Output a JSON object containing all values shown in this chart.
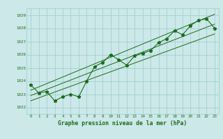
{
  "hours": [
    0,
    1,
    2,
    3,
    4,
    5,
    6,
    7,
    8,
    9,
    10,
    11,
    12,
    13,
    14,
    15,
    16,
    17,
    18,
    19,
    20,
    21,
    22,
    23
  ],
  "pressure": [
    1023.7,
    1023.1,
    1023.2,
    1022.5,
    1022.8,
    1023.0,
    1022.8,
    1024.0,
    1025.1,
    1025.4,
    1026.0,
    1025.6,
    1025.2,
    1025.9,
    1026.1,
    1026.3,
    1026.9,
    1027.2,
    1027.8,
    1027.5,
    1028.2,
    1028.6,
    1028.7,
    1028.0
  ],
  "trend_upper": [
    1023.3,
    1023.55,
    1023.8,
    1024.05,
    1024.3,
    1024.55,
    1024.8,
    1025.05,
    1025.3,
    1025.55,
    1025.8,
    1026.05,
    1026.3,
    1026.55,
    1026.8,
    1027.05,
    1027.3,
    1027.55,
    1027.8,
    1028.05,
    1028.3,
    1028.55,
    1028.8,
    1029.05
  ],
  "trend_lower": [
    1022.5,
    1022.72,
    1022.94,
    1023.16,
    1023.38,
    1023.6,
    1023.82,
    1024.04,
    1024.26,
    1024.48,
    1024.7,
    1024.92,
    1025.14,
    1025.36,
    1025.58,
    1025.8,
    1026.02,
    1026.24,
    1026.46,
    1026.68,
    1026.9,
    1027.12,
    1027.34,
    1027.56
  ],
  "trend_mid": [
    1022.9,
    1023.13,
    1023.37,
    1023.6,
    1023.84,
    1024.07,
    1024.31,
    1024.54,
    1024.78,
    1025.01,
    1025.25,
    1025.48,
    1025.72,
    1025.95,
    1026.19,
    1026.42,
    1026.66,
    1026.89,
    1027.13,
    1027.36,
    1027.6,
    1027.83,
    1028.07,
    1028.3
  ],
  "ylim": [
    1021.5,
    1029.5
  ],
  "yticks": [
    1022,
    1023,
    1024,
    1025,
    1026,
    1027,
    1028,
    1029
  ],
  "line_color": "#1a6b1a",
  "bg_color": "#cce8e8",
  "grid_color": "#99cccc",
  "xlabel": "Graphe pression niveau de la mer (hPa)",
  "title_color": "#1a6b1a",
  "tick_fontsize": 4.2,
  "xlabel_fontsize": 5.8
}
